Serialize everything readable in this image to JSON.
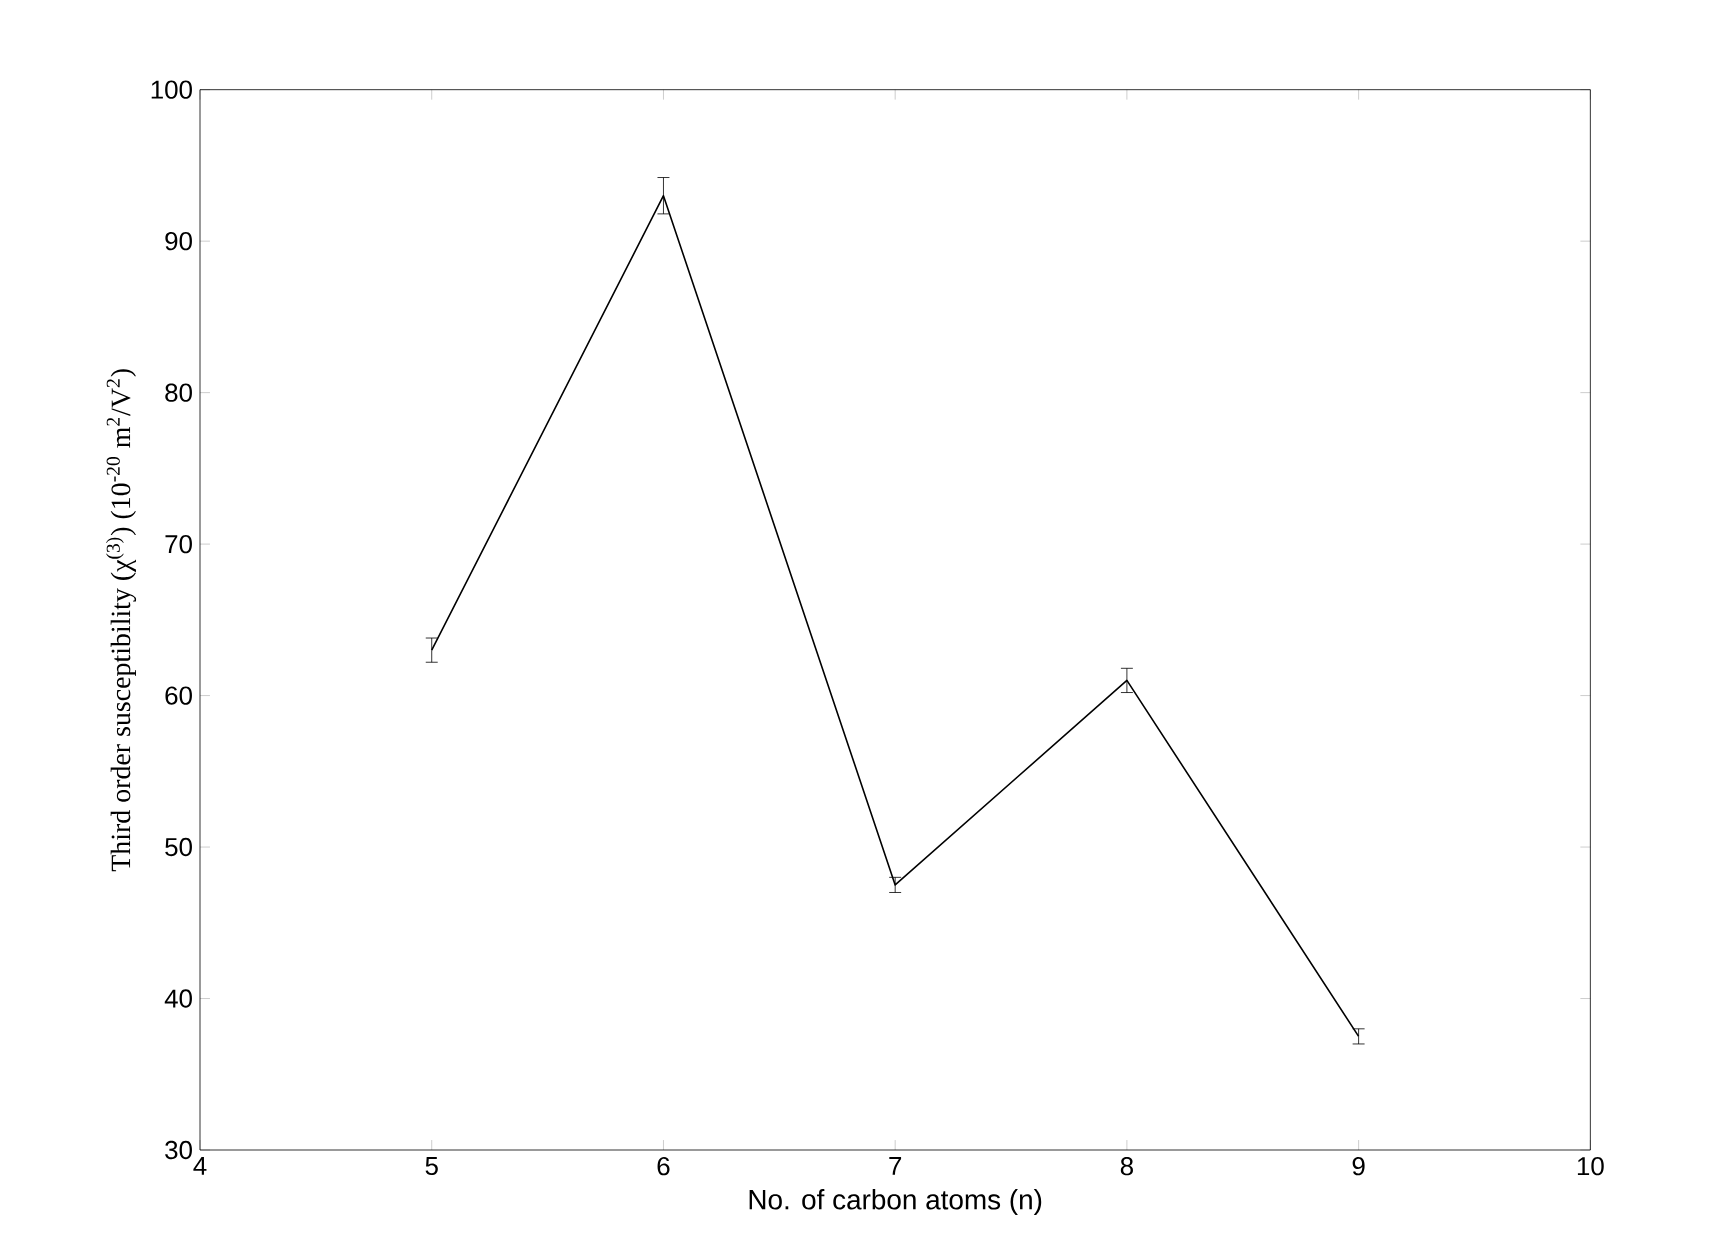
{
  "chart_data": {
    "type": "line",
    "xlabel": "No. of carbon atoms (n)",
    "ylabel": "Third order susceptibility (χ$^{(3)}$) (10$^{-20}$ m$^{2}$/V$^{2}$)",
    "x": [
      5,
      6,
      7,
      8,
      9
    ],
    "series": [
      {
        "color": "#000000",
        "values": [
          63,
          93,
          47.5,
          61,
          37.5
        ],
        "errors": [
          0.8,
          1.2,
          0.5,
          0.8,
          0.5
        ]
      }
    ],
    "xlim": [
      4,
      10
    ],
    "ylim": [
      30,
      100
    ],
    "xticks": [
      4,
      5,
      6,
      7,
      8,
      9,
      10
    ],
    "yticks": [
      30,
      40,
      50,
      60,
      70,
      80,
      90,
      100
    ],
    "grid": false,
    "marker": "none",
    "line_style": "solid"
  }
}
